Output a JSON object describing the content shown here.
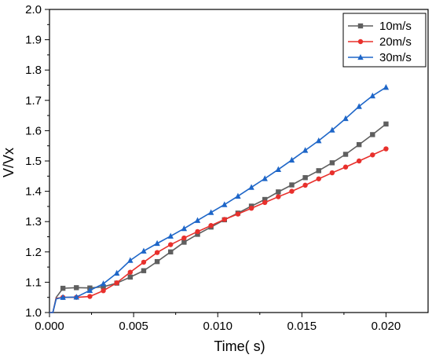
{
  "chart_data": {
    "type": "line",
    "title": "",
    "xlabel": "Time( s)",
    "ylabel": "V/Vx",
    "xlim": [
      0,
      0.0225
    ],
    "ylim": [
      1.0,
      2.0
    ],
    "xticks": [
      0.0,
      0.005,
      0.01,
      0.015,
      0.02
    ],
    "xtick_labels": [
      "0.000",
      "0.005",
      "0.010",
      "0.015",
      "0.020"
    ],
    "yticks": [
      1.0,
      1.1,
      1.2,
      1.3,
      1.4,
      1.5,
      1.6,
      1.7,
      1.8,
      1.9,
      2.0
    ],
    "ytick_labels": [
      "1.0",
      "1.1",
      "1.2",
      "1.3",
      "1.4",
      "1.5",
      "1.6",
      "1.7",
      "1.8",
      "1.9",
      "2.0"
    ],
    "grid": false,
    "legend_position": "top-right",
    "series": [
      {
        "name": "10m/s",
        "color": "#5f5f5f",
        "marker": "square",
        "x": [
          0.0,
          0.0002,
          0.0004,
          0.0008,
          0.0016,
          0.0024,
          0.0032,
          0.004,
          0.0048,
          0.0056,
          0.0064,
          0.0072,
          0.008,
          0.0088,
          0.0096,
          0.0104,
          0.0112,
          0.012,
          0.0128,
          0.0136,
          0.0144,
          0.0152,
          0.016,
          0.0168,
          0.0176,
          0.0184,
          0.0192,
          0.02
        ],
        "y": [
          1.0,
          1.0,
          1.05,
          1.08,
          1.082,
          1.081,
          1.085,
          1.097,
          1.117,
          1.138,
          1.168,
          1.2,
          1.232,
          1.258,
          1.282,
          1.306,
          1.328,
          1.351,
          1.373,
          1.398,
          1.421,
          1.445,
          1.468,
          1.494,
          1.522,
          1.554,
          1.587,
          1.622
        ]
      },
      {
        "name": "20m/s",
        "color": "#e8302c",
        "marker": "circle",
        "x": [
          0.0,
          0.0002,
          0.0004,
          0.0008,
          0.0016,
          0.0024,
          0.0032,
          0.004,
          0.0048,
          0.0056,
          0.0064,
          0.0072,
          0.008,
          0.0088,
          0.0096,
          0.0104,
          0.0112,
          0.012,
          0.0128,
          0.0136,
          0.0144,
          0.0152,
          0.016,
          0.0168,
          0.0176,
          0.0184,
          0.0192,
          0.02
        ],
        "y": [
          1.0,
          1.0,
          1.047,
          1.05,
          1.05,
          1.053,
          1.072,
          1.098,
          1.133,
          1.166,
          1.198,
          1.224,
          1.246,
          1.267,
          1.287,
          1.307,
          1.325,
          1.344,
          1.363,
          1.382,
          1.4,
          1.42,
          1.441,
          1.461,
          1.48,
          1.5,
          1.52,
          1.54
        ]
      },
      {
        "name": "30m/s",
        "color": "#1e66c8",
        "marker": "triangle",
        "x": [
          0.0,
          0.0002,
          0.0004,
          0.0008,
          0.0016,
          0.0024,
          0.0032,
          0.004,
          0.0048,
          0.0056,
          0.0064,
          0.0072,
          0.008,
          0.0088,
          0.0096,
          0.0104,
          0.0112,
          0.012,
          0.0128,
          0.0136,
          0.0144,
          0.0152,
          0.016,
          0.0168,
          0.0176,
          0.0184,
          0.0192,
          0.02
        ],
        "y": [
          1.0,
          1.0,
          1.045,
          1.05,
          1.051,
          1.073,
          1.095,
          1.13,
          1.172,
          1.203,
          1.228,
          1.252,
          1.277,
          1.304,
          1.33,
          1.356,
          1.384,
          1.413,
          1.442,
          1.472,
          1.503,
          1.535,
          1.567,
          1.602,
          1.64,
          1.68,
          1.715,
          1.743
        ]
      }
    ]
  }
}
